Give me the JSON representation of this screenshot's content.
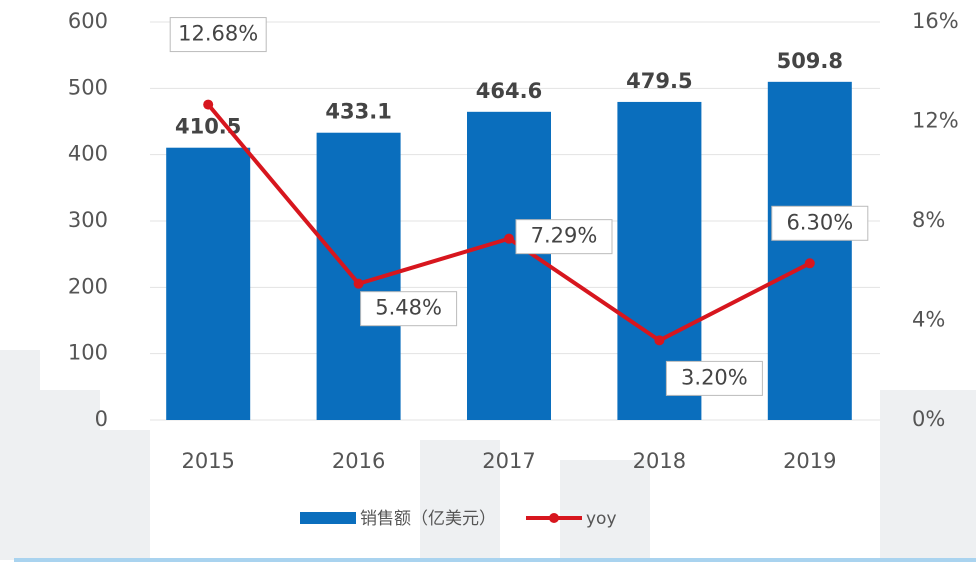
{
  "chart_data": {
    "type": "bar",
    "categories": [
      "2015",
      "2016",
      "2017",
      "2018",
      "2019"
    ],
    "series": [
      {
        "name": "销售额（亿美元）",
        "type": "bar",
        "color": "#0a6ebd",
        "values": [
          410.5,
          433.1,
          464.6,
          479.5,
          509.8
        ]
      },
      {
        "name": "yoy",
        "type": "line",
        "axis": "y2",
        "color": "#d7161e",
        "values": [
          12.68,
          5.48,
          7.29,
          3.2,
          6.3
        ],
        "value_labels": [
          "12.68%",
          "5.48%",
          "7.29%",
          "3.20%",
          "6.30%"
        ]
      }
    ],
    "ylim": [
      0,
      600
    ],
    "yticks": [
      0,
      100,
      200,
      300,
      400,
      500,
      600
    ],
    "y2lim": [
      0,
      16
    ],
    "y2ticks": [
      {
        "value": 0,
        "label": "0%"
      },
      {
        "value": 4,
        "label": "4%"
      },
      {
        "value": 8,
        "label": "8%"
      },
      {
        "value": 12,
        "label": "12%"
      },
      {
        "value": 16,
        "label": "16%"
      }
    ],
    "grid": true
  }
}
